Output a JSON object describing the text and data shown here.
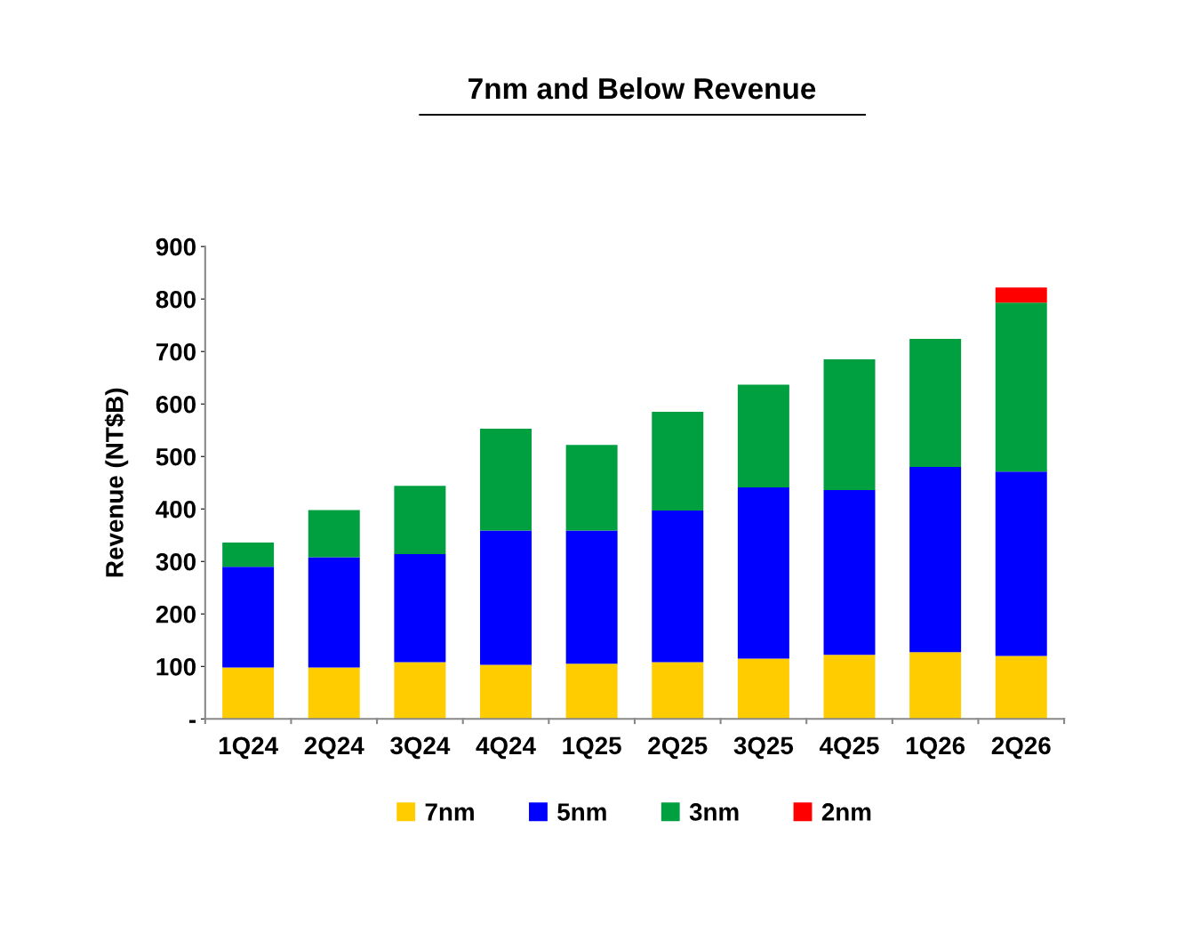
{
  "chart_data": {
    "type": "bar",
    "title": "7nm and Below Revenue",
    "ylabel": "Revenue (NT$B)",
    "stacked": true,
    "legend": "bottom",
    "grid": false,
    "categories": [
      "1Q24",
      "2Q24",
      "3Q24",
      "4Q24",
      "1Q25",
      "2Q25",
      "3Q25",
      "4Q25",
      "1Q26",
      "2Q26"
    ],
    "ylim": [
      0,
      900
    ],
    "yticks": [
      {
        "value": 0,
        "label": "-"
      },
      100,
      200,
      300,
      400,
      500,
      600,
      700,
      800,
      900
    ],
    "series": [
      {
        "name": "7nm",
        "color": "#ffcc00",
        "values": [
          98,
          98,
          108,
          103,
          105,
          108,
          115,
          122,
          127,
          120
        ]
      },
      {
        "name": "5nm",
        "color": "#0000ff",
        "values": [
          192,
          210,
          206,
          256,
          254,
          289,
          326,
          314,
          353,
          351
        ]
      },
      {
        "name": "3nm",
        "color": "#00a040",
        "values": [
          46,
          90,
          130,
          194,
          163,
          188,
          196,
          249,
          244,
          322
        ]
      },
      {
        "name": "2nm",
        "color": "#ff0000",
        "values": [
          null,
          null,
          null,
          null,
          null,
          null,
          null,
          null,
          null,
          29
        ]
      }
    ]
  }
}
